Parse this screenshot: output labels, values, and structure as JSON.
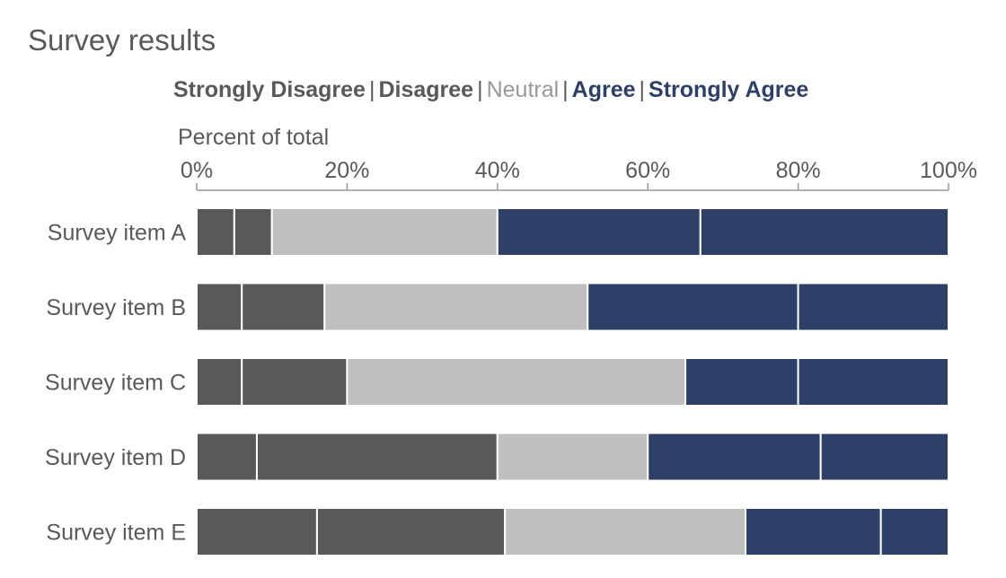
{
  "chart_data": {
    "type": "bar",
    "orientation": "horizontal",
    "stacked": true,
    "title": "Survey results",
    "xlabel": "Percent of total",
    "ylabel": "",
    "xlim": [
      0,
      100
    ],
    "xticks": [
      "0%",
      "20%",
      "40%",
      "60%",
      "80%",
      "100%"
    ],
    "categories": [
      "Survey item A",
      "Survey item B",
      "Survey item C",
      "Survey item D",
      "Survey item E"
    ],
    "series": [
      {
        "name": "Strongly Disagree",
        "color": "#595959",
        "values": [
          5,
          6,
          6,
          8,
          16
        ]
      },
      {
        "name": "Disagree",
        "color": "#595959",
        "values": [
          5,
          11,
          14,
          32,
          25
        ]
      },
      {
        "name": "Neutral",
        "color": "#bfbfbf",
        "values": [
          30,
          35,
          45,
          20,
          32
        ]
      },
      {
        "name": "Agree",
        "color": "#2e4068",
        "values": [
          27,
          28,
          15,
          23,
          18
        ]
      },
      {
        "name": "Strongly Agree",
        "color": "#2e4068",
        "values": [
          33,
          20,
          20,
          17,
          9
        ]
      }
    ],
    "legend_text_colors": [
      "#595959",
      "#595959",
      "#999999",
      "#2e4068",
      "#2e4068"
    ],
    "legend_position": "top",
    "grid": false
  }
}
